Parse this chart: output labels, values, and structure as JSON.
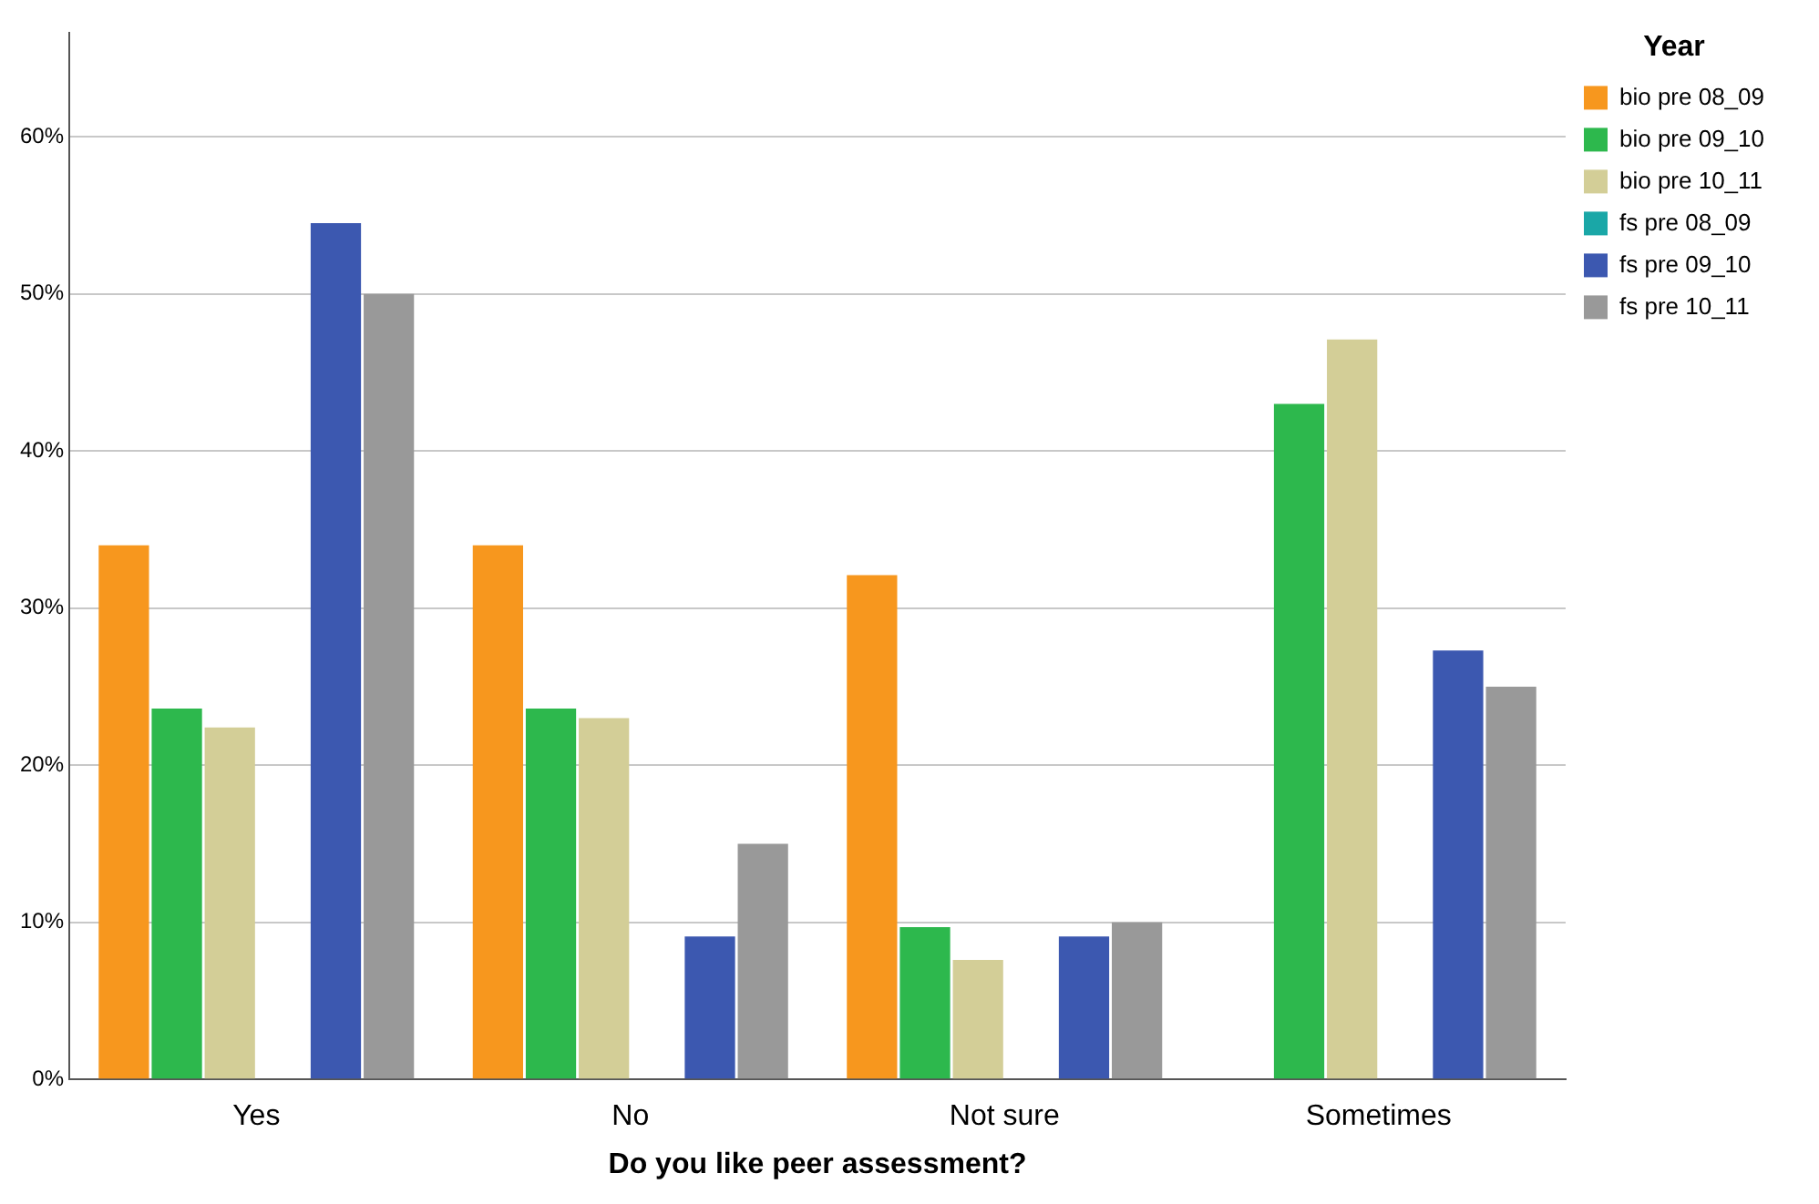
{
  "chart_data": {
    "type": "bar",
    "xlabel": "Do you like peer assessment?",
    "legend_title": "Year",
    "categories": [
      "Yes",
      "No",
      "Not sure",
      "Sometimes"
    ],
    "series": [
      {
        "name": "bio pre 08_09",
        "color": "#f7971e",
        "values": [
          34.0,
          34.0,
          32.1,
          null
        ]
      },
      {
        "name": "bio pre 09_10",
        "color": "#2db84d",
        "values": [
          23.6,
          23.6,
          9.7,
          43.0
        ]
      },
      {
        "name": "bio pre 10_11",
        "color": "#d3ce97",
        "values": [
          22.4,
          23.0,
          7.6,
          47.1
        ]
      },
      {
        "name": "fs pre 08_09",
        "color": "#1aa7a7",
        "values": [
          null,
          null,
          null,
          null
        ]
      },
      {
        "name": "fs pre 09_10",
        "color": "#3c58b0",
        "values": [
          54.5,
          9.1,
          9.1,
          27.3
        ]
      },
      {
        "name": "fs pre 10_11",
        "color": "#999999",
        "values": [
          50.0,
          15.0,
          10.0,
          25.0
        ]
      }
    ],
    "ylim": [
      0,
      66.6
    ],
    "yticks": [
      {
        "value": 0,
        "label": "0%"
      },
      {
        "value": 10,
        "label": "10%"
      },
      {
        "value": 20,
        "label": "20%"
      },
      {
        "value": 30,
        "label": "30%"
      },
      {
        "value": 40,
        "label": "40%"
      },
      {
        "value": 50,
        "label": "50%"
      },
      {
        "value": 60,
        "label": "60%"
      }
    ],
    "grid": "y",
    "legend": "top right"
  }
}
